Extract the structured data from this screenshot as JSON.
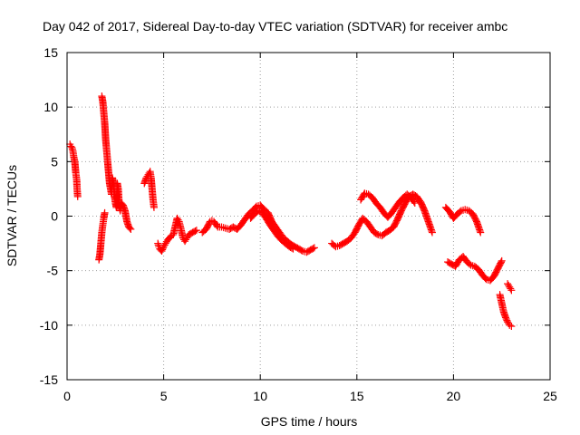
{
  "chart_data": {
    "type": "scatter",
    "title": "Day 042 of 2017, Sidereal Day-to-day VTEC variation (SDTVAR) for receiver ambc",
    "xlabel": "GPS time / hours",
    "ylabel": "SDTVAR / TECUs",
    "xlim": [
      0,
      25
    ],
    "ylim": [
      -15,
      15
    ],
    "xticks": [
      0,
      5,
      10,
      15,
      20,
      25
    ],
    "yticks": [
      -15,
      -10,
      -5,
      0,
      5,
      10,
      15
    ],
    "grid": true,
    "marker": "+",
    "colors": {
      "series": "#ff0000",
      "grid": "#a0a0a0",
      "axis": "#000000"
    },
    "series": [
      {
        "name": "SDTVAR",
        "points": [
          [
            0.15,
            6.6
          ],
          [
            0.2,
            6.4
          ],
          [
            0.25,
            6.3
          ],
          [
            0.3,
            6.0
          ],
          [
            0.35,
            5.4
          ],
          [
            0.4,
            5.0
          ],
          [
            0.45,
            4.0
          ],
          [
            0.5,
            3.3
          ],
          [
            0.52,
            2.5
          ],
          [
            0.55,
            1.8
          ],
          [
            1.65,
            -4.0
          ],
          [
            1.7,
            -3.5
          ],
          [
            1.75,
            -2.5
          ],
          [
            1.8,
            -1.5
          ],
          [
            1.85,
            -0.8
          ],
          [
            1.9,
            -0.2
          ],
          [
            1.95,
            0.3
          ],
          [
            1.8,
            11.0
          ],
          [
            1.85,
            10.5
          ],
          [
            1.9,
            9.5
          ],
          [
            1.95,
            8.5
          ],
          [
            2.0,
            7.0
          ],
          [
            2.05,
            6.0
          ],
          [
            2.1,
            5.0
          ],
          [
            2.15,
            4.0
          ],
          [
            2.2,
            3.0
          ],
          [
            2.25,
            2.5
          ],
          [
            2.3,
            2.0
          ],
          [
            2.35,
            3.5
          ],
          [
            2.4,
            3.0
          ],
          [
            2.45,
            2.0
          ],
          [
            2.5,
            1.2
          ],
          [
            2.55,
            0.8
          ],
          [
            2.6,
            3.0
          ],
          [
            2.65,
            2.5
          ],
          [
            2.7,
            1.0
          ],
          [
            2.75,
            0.5
          ],
          [
            2.8,
            1.2
          ],
          [
            2.9,
            1.0
          ],
          [
            3.0,
            0.5
          ],
          [
            3.1,
            -0.5
          ],
          [
            3.2,
            -1.0
          ],
          [
            3.3,
            -1.2
          ],
          [
            4.0,
            3.0
          ],
          [
            4.1,
            3.5
          ],
          [
            4.2,
            3.8
          ],
          [
            4.3,
            4.1
          ],
          [
            4.35,
            3.5
          ],
          [
            4.4,
            2.5
          ],
          [
            4.45,
            1.5
          ],
          [
            4.5,
            0.8
          ],
          [
            4.7,
            -2.5
          ],
          [
            4.75,
            -2.8
          ],
          [
            4.8,
            -3.0
          ],
          [
            4.9,
            -3.2
          ],
          [
            5.0,
            -2.8
          ],
          [
            5.1,
            -2.5
          ],
          [
            5.2,
            -2.2
          ],
          [
            5.3,
            -2.0
          ],
          [
            5.4,
            -1.8
          ],
          [
            5.5,
            -1.7
          ],
          [
            5.7,
            -0.2
          ],
          [
            5.8,
            -0.5
          ],
          [
            5.9,
            -1.2
          ],
          [
            6.0,
            -2.0
          ],
          [
            6.1,
            -2.3
          ],
          [
            6.2,
            -2.0
          ],
          [
            6.3,
            -1.7
          ],
          [
            6.5,
            -1.5
          ],
          [
            6.7,
            -1.3
          ],
          [
            7.0,
            -1.5
          ],
          [
            7.2,
            -1.2
          ],
          [
            7.4,
            -0.5
          ],
          [
            7.5,
            -0.4
          ],
          [
            7.6,
            -0.5
          ],
          [
            7.8,
            -1.0
          ],
          [
            8.0,
            -1.0
          ],
          [
            8.2,
            -1.1
          ],
          [
            8.4,
            -1.2
          ],
          [
            8.6,
            -1.0
          ],
          [
            8.8,
            -1.2
          ],
          [
            9.0,
            -0.8
          ],
          [
            9.2,
            -0.3
          ],
          [
            9.4,
            0.2
          ],
          [
            9.6,
            0.5
          ],
          [
            9.8,
            0.9
          ],
          [
            10.0,
            1.0
          ],
          [
            10.2,
            0.6
          ],
          [
            10.4,
            0.3
          ],
          [
            10.6,
            -0.5
          ],
          [
            10.8,
            -1.0
          ],
          [
            11.0,
            -1.5
          ],
          [
            11.2,
            -2.0
          ],
          [
            11.4,
            -2.3
          ],
          [
            11.6,
            -2.6
          ],
          [
            11.8,
            -2.8
          ],
          [
            12.0,
            -3.0
          ],
          [
            12.2,
            -3.2
          ],
          [
            12.4,
            -3.3
          ],
          [
            12.6,
            -3.1
          ],
          [
            12.8,
            -2.9
          ],
          [
            9.5,
            -0.2
          ],
          [
            9.7,
            0.2
          ],
          [
            9.9,
            0.5
          ],
          [
            10.1,
            0.3
          ],
          [
            10.3,
            -0.2
          ],
          [
            10.5,
            -0.8
          ],
          [
            10.7,
            -1.3
          ],
          [
            10.9,
            -1.8
          ],
          [
            11.1,
            -2.2
          ],
          [
            11.3,
            -2.5
          ],
          [
            11.5,
            -2.8
          ],
          [
            11.7,
            -3.0
          ],
          [
            13.7,
            -2.5
          ],
          [
            13.9,
            -2.8
          ],
          [
            14.1,
            -2.7
          ],
          [
            14.3,
            -2.5
          ],
          [
            14.5,
            -2.3
          ],
          [
            14.7,
            -2.0
          ],
          [
            14.9,
            -1.5
          ],
          [
            15.1,
            -0.8
          ],
          [
            15.3,
            -0.2
          ],
          [
            15.5,
            -0.5
          ],
          [
            15.7,
            -1.0
          ],
          [
            15.9,
            -1.5
          ],
          [
            16.1,
            -1.7
          ],
          [
            16.3,
            -1.8
          ],
          [
            16.5,
            -1.5
          ],
          [
            16.7,
            -1.3
          ],
          [
            16.9,
            -1.0
          ],
          [
            17.1,
            -0.3
          ],
          [
            17.3,
            0.5
          ],
          [
            17.5,
            1.2
          ],
          [
            17.7,
            1.8
          ],
          [
            17.9,
            2.0
          ],
          [
            18.1,
            1.8
          ],
          [
            18.3,
            1.3
          ],
          [
            18.5,
            0.5
          ],
          [
            18.7,
            -0.5
          ],
          [
            18.9,
            -1.5
          ],
          [
            15.2,
            1.5
          ],
          [
            15.4,
            2.1
          ],
          [
            15.6,
            2.0
          ],
          [
            15.8,
            1.7
          ],
          [
            16.0,
            1.2
          ],
          [
            16.2,
            0.8
          ],
          [
            16.4,
            0.3
          ],
          [
            16.6,
            -0.1
          ],
          [
            16.8,
            0.3
          ],
          [
            17.0,
            0.8
          ],
          [
            17.2,
            1.3
          ],
          [
            17.4,
            1.7
          ],
          [
            17.6,
            2.0
          ],
          [
            17.8,
            1.7
          ],
          [
            18.0,
            1.2
          ],
          [
            19.6,
            0.8
          ],
          [
            19.8,
            0.4
          ],
          [
            20.0,
            -0.2
          ],
          [
            20.2,
            0.2
          ],
          [
            20.4,
            0.5
          ],
          [
            20.6,
            0.6
          ],
          [
            20.8,
            0.5
          ],
          [
            21.0,
            0.2
          ],
          [
            21.2,
            -0.5
          ],
          [
            21.4,
            -1.5
          ],
          [
            19.7,
            -4.2
          ],
          [
            19.9,
            -4.4
          ],
          [
            20.1,
            -4.6
          ],
          [
            20.3,
            -4.0
          ],
          [
            20.5,
            -3.7
          ],
          [
            20.7,
            -4.2
          ],
          [
            20.9,
            -4.5
          ],
          [
            21.1,
            -4.6
          ],
          [
            21.3,
            -4.9
          ],
          [
            21.5,
            -5.4
          ],
          [
            21.7,
            -5.8
          ],
          [
            21.9,
            -5.9
          ],
          [
            22.1,
            -5.5
          ],
          [
            22.3,
            -4.8
          ],
          [
            22.5,
            -4.1
          ],
          [
            22.4,
            -7.2
          ],
          [
            22.5,
            -8.0
          ],
          [
            22.6,
            -8.8
          ],
          [
            22.7,
            -9.3
          ],
          [
            22.8,
            -9.7
          ],
          [
            22.9,
            -10.0
          ],
          [
            23.0,
            -10.1
          ],
          [
            22.8,
            -6.2
          ],
          [
            22.9,
            -6.5
          ],
          [
            23.0,
            -6.8
          ]
        ]
      }
    ]
  }
}
